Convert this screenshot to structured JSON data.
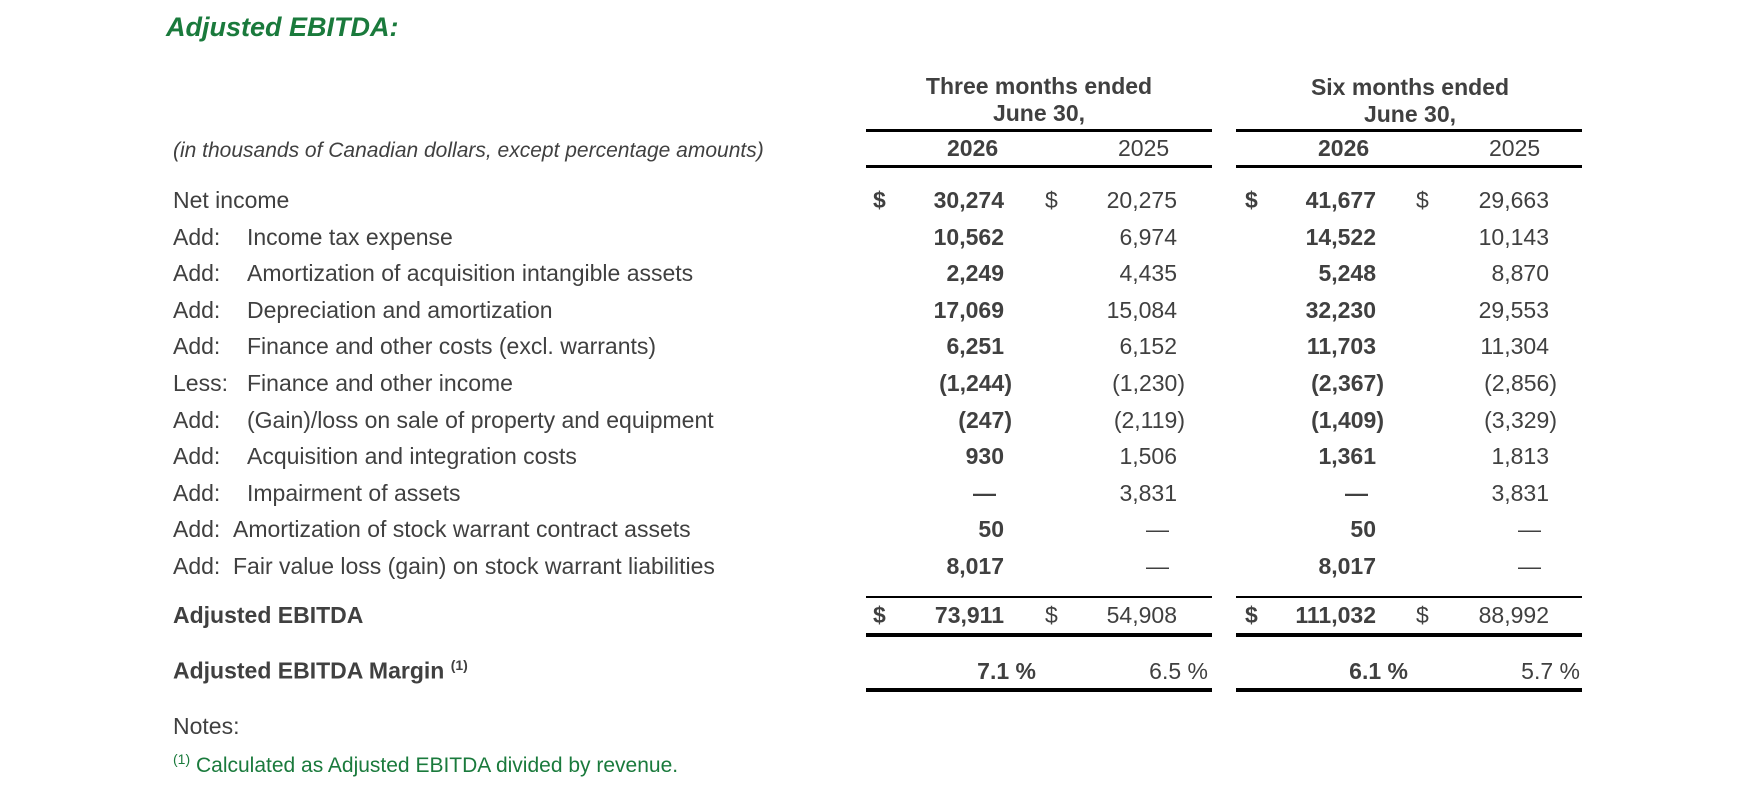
{
  "title": "Adjusted EBITDA:",
  "units_note": "(in thousands of Canadian dollars, except percentage amounts)",
  "headers": {
    "three_months": [
      "Three months ended",
      "June 30,"
    ],
    "six_months": [
      "Six months ended",
      "June 30,"
    ],
    "years": [
      "2026",
      "2025",
      "2026",
      "2025"
    ]
  },
  "currency_symbol": "$",
  "rows": [
    {
      "prefix": "",
      "label": "Net income",
      "values": [
        "30,274",
        "20,275",
        "41,677",
        "29,663"
      ]
    },
    {
      "prefix": "Add:",
      "label": "Income tax expense",
      "values": [
        "10,562",
        "6,974",
        "14,522",
        "10,143"
      ]
    },
    {
      "prefix": "Add:",
      "label": "Amortization of acquisition intangible assets",
      "values": [
        "2,249",
        "4,435",
        "5,248",
        "8,870"
      ]
    },
    {
      "prefix": "Add:",
      "label": "Depreciation and amortization",
      "values": [
        "17,069",
        "15,084",
        "32,230",
        "29,553"
      ]
    },
    {
      "prefix": "Add:",
      "label": "Finance and other costs (excl. warrants)",
      "values": [
        "6,251",
        "6,152",
        "11,703",
        "11,304"
      ]
    },
    {
      "prefix": "Less:",
      "label": "Finance and other income",
      "values": [
        "(1,244)",
        "(1,230)",
        "(2,367)",
        "(2,856)"
      ]
    },
    {
      "prefix": "Add:",
      "label": "(Gain)/loss on sale of property and equipment",
      "values": [
        "(247)",
        "(2,119)",
        "(1,409)",
        "(3,329)"
      ]
    },
    {
      "prefix": "Add:",
      "label": "Acquisition and integration costs",
      "values": [
        "930",
        "1,506",
        "1,361",
        "1,813"
      ]
    },
    {
      "prefix": "Add:",
      "label": "Impairment of assets",
      "values": [
        "—",
        "3,831",
        "—",
        "3,831"
      ]
    },
    {
      "prefix": "Add:",
      "label": "Amortization of stock warrant contract assets",
      "values": [
        "50",
        "—",
        "50",
        "—"
      ]
    },
    {
      "prefix": "Add:",
      "label": "Fair value loss (gain) on stock warrant liabilities",
      "values": [
        "8,017",
        "—",
        "8,017",
        "—"
      ]
    }
  ],
  "total": {
    "label": "Adjusted EBITDA",
    "values": [
      "73,911",
      "54,908",
      "111,032",
      "88,992"
    ]
  },
  "margin": {
    "label": "Adjusted EBITDA Margin",
    "footnote_ref": "(1)",
    "values": [
      "7.1 %",
      "6.5 %",
      "6.1 %",
      "5.7 %"
    ]
  },
  "notes_label": "Notes:",
  "footnote": {
    "ref": "(1)",
    "text": "Calculated as Adjusted EBITDA divided by revenue."
  }
}
